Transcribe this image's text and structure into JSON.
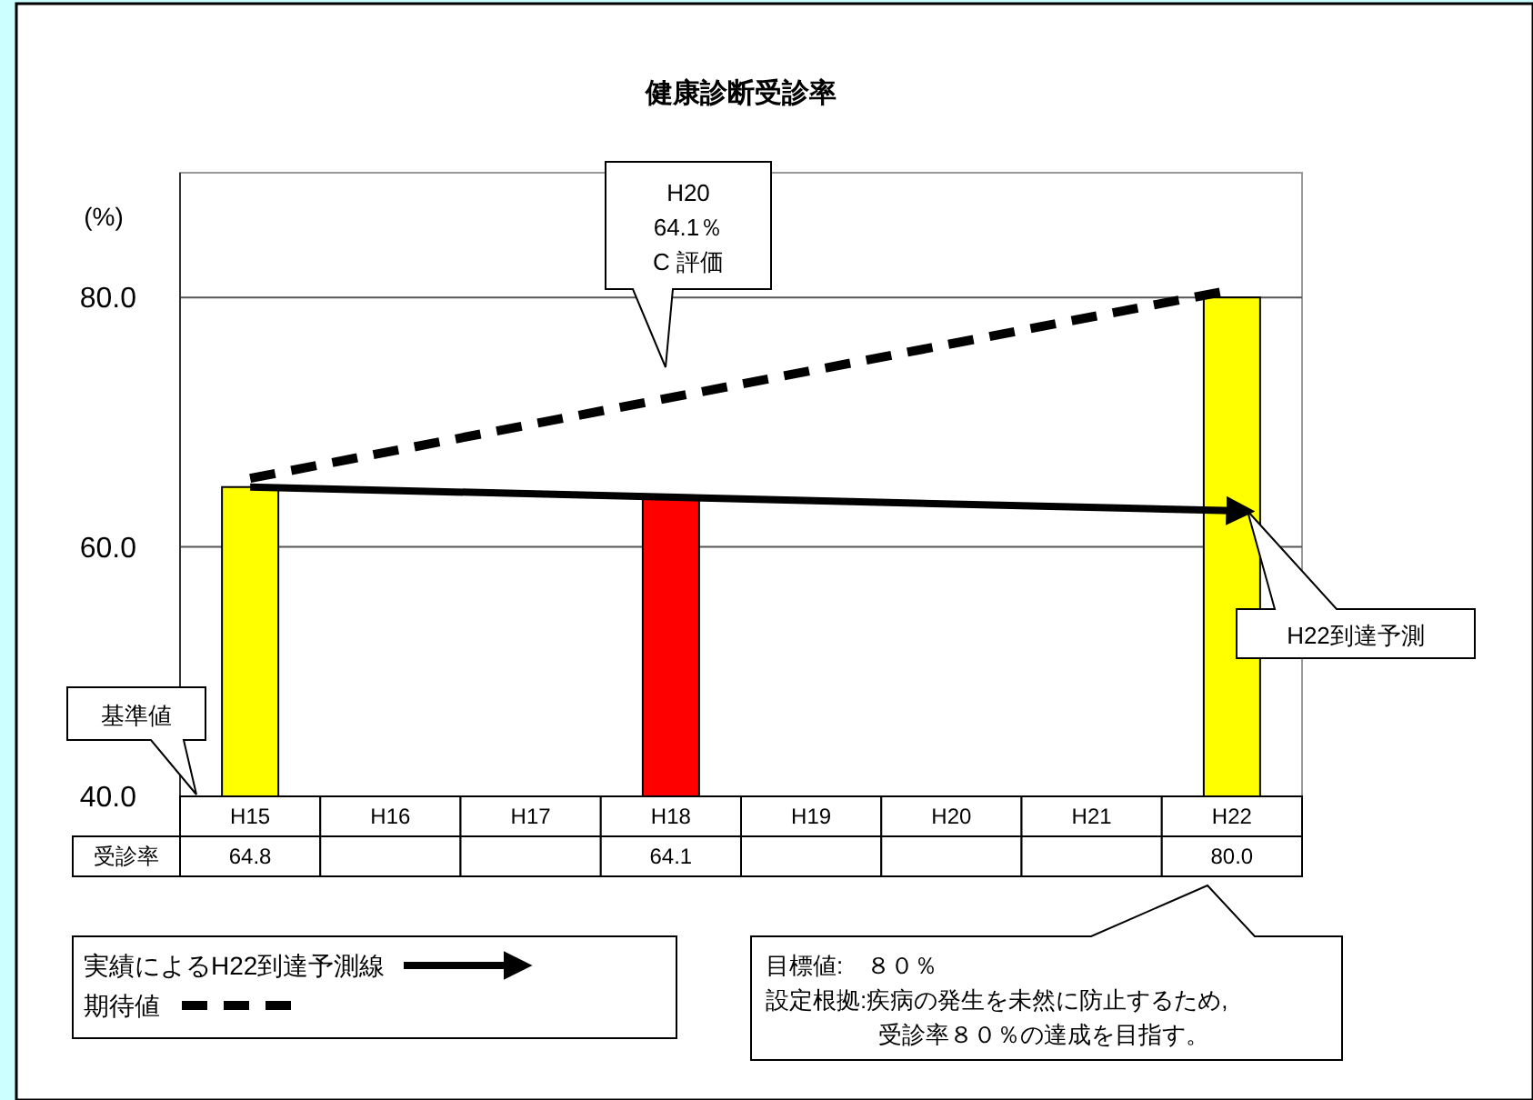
{
  "chart_data": {
    "type": "bar",
    "title": "健康診断受診率",
    "ylabel": "(%)",
    "categories": [
      "H15",
      "H16",
      "H17",
      "H18",
      "H19",
      "H20",
      "H21",
      "H22"
    ],
    "series": [
      {
        "name": "受診率",
        "values": [
          64.8,
          null,
          null,
          64.1,
          null,
          null,
          null,
          80.0
        ],
        "colors": [
          "#ffff00",
          null,
          null,
          "#ff0000",
          null,
          null,
          null,
          "#ffff00"
        ],
        "value_labels": [
          "64.8",
          null,
          null,
          "64.1",
          null,
          null,
          null,
          "80.0"
        ]
      },
      {
        "name": "実績によるH22到達予測線",
        "type": "line",
        "x": [
          "H15",
          "H22"
        ],
        "values": [
          64.8,
          62.9
        ],
        "color": "#000000",
        "line_style": "solid"
      },
      {
        "name": "期待値",
        "type": "line",
        "x": [
          "H15",
          "H22"
        ],
        "values": [
          65.5,
          80.6
        ],
        "color": "#000000",
        "line_style": "dashed"
      }
    ],
    "ylim": [
      40,
      90
    ],
    "yticks": [
      {
        "value": 40,
        "label": "40.0"
      },
      {
        "value": 60,
        "label": "60.0"
      },
      {
        "value": 80,
        "label": "80.0"
      }
    ],
    "grid": "y",
    "legend": "bottom left",
    "marker": "none",
    "annotations": [
      "H20\n64.1％\nC 評価",
      "H22到達予測",
      "基準値",
      "目標値:　８０％",
      "設定根拠:疾病の発生を未然に防止するため,受診率８０％の達成を目指す。"
    ]
  }
}
